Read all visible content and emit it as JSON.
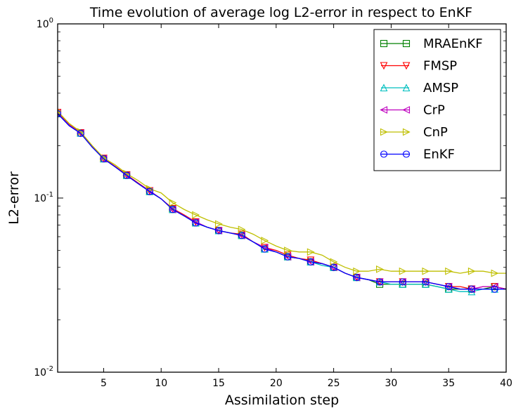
{
  "chart_data": {
    "type": "line",
    "title": "Time evolution of average log L2-error in respect to EnKF",
    "xlabel": "Assimilation step",
    "ylabel": "L2-error",
    "xlim": [
      1,
      40
    ],
    "ylim": [
      0.01,
      1
    ],
    "yscale": "log",
    "xticks": [
      5,
      10,
      15,
      20,
      25,
      30,
      35,
      40
    ],
    "xtick_labels": [
      "5",
      "10",
      "15",
      "20",
      "25",
      "30",
      "35",
      "40"
    ],
    "yticks": [
      {
        "value": 0.01,
        "base": "10",
        "exp": "-2"
      },
      {
        "value": 0.1,
        "base": "10",
        "exp": "-1"
      },
      {
        "value": 1,
        "base": "10",
        "exp": "0"
      }
    ],
    "legend_position": "top-right",
    "grid": false,
    "x": [
      1,
      2,
      3,
      4,
      5,
      6,
      7,
      8,
      9,
      10,
      11,
      12,
      13,
      14,
      15,
      16,
      17,
      18,
      19,
      20,
      21,
      22,
      23,
      24,
      25,
      26,
      27,
      28,
      29,
      30,
      31,
      32,
      33,
      34,
      35,
      36,
      37,
      38,
      39,
      40
    ],
    "series": [
      {
        "name": "MRAEnKF",
        "color": "#008000",
        "marker": "square",
        "values": [
          0.305,
          0.262,
          0.236,
          0.197,
          0.168,
          0.151,
          0.135,
          0.121,
          0.109,
          0.099,
          0.086,
          0.079,
          0.072,
          0.068,
          0.065,
          0.063,
          0.061,
          0.056,
          0.051,
          0.049,
          0.046,
          0.045,
          0.043,
          0.042,
          0.04,
          0.037,
          0.035,
          0.034,
          0.032,
          0.032,
          0.032,
          0.032,
          0.032,
          0.031,
          0.03,
          0.03,
          0.03,
          0.03,
          0.031,
          0.03
        ]
      },
      {
        "name": "FMSP",
        "color": "#ff0000",
        "marker": "triangle-down",
        "values": [
          0.31,
          0.264,
          0.237,
          0.198,
          0.169,
          0.152,
          0.136,
          0.122,
          0.11,
          0.099,
          0.087,
          0.08,
          0.073,
          0.068,
          0.065,
          0.063,
          0.062,
          0.056,
          0.052,
          0.05,
          0.047,
          0.045,
          0.044,
          0.042,
          0.04,
          0.037,
          0.035,
          0.034,
          0.033,
          0.033,
          0.033,
          0.033,
          0.033,
          0.032,
          0.031,
          0.031,
          0.03,
          0.031,
          0.031,
          0.03
        ]
      },
      {
        "name": "AMSP",
        "color": "#00bfbf",
        "marker": "triangle-up",
        "values": [
          0.307,
          0.262,
          0.236,
          0.197,
          0.168,
          0.151,
          0.135,
          0.121,
          0.109,
          0.099,
          0.086,
          0.079,
          0.072,
          0.068,
          0.065,
          0.063,
          0.061,
          0.056,
          0.051,
          0.049,
          0.046,
          0.045,
          0.043,
          0.041,
          0.04,
          0.037,
          0.035,
          0.034,
          0.033,
          0.032,
          0.032,
          0.032,
          0.032,
          0.031,
          0.03,
          0.029,
          0.029,
          0.03,
          0.03,
          0.03
        ]
      },
      {
        "name": "CrP",
        "color": "#bf00bf",
        "marker": "triangle-left",
        "values": [
          0.306,
          0.262,
          0.236,
          0.197,
          0.168,
          0.151,
          0.135,
          0.121,
          0.11,
          0.099,
          0.086,
          0.079,
          0.073,
          0.068,
          0.065,
          0.063,
          0.061,
          0.056,
          0.052,
          0.049,
          0.046,
          0.045,
          0.043,
          0.042,
          0.04,
          0.037,
          0.035,
          0.034,
          0.033,
          0.033,
          0.033,
          0.033,
          0.033,
          0.032,
          0.031,
          0.03,
          0.03,
          0.031,
          0.031,
          0.03
        ]
      },
      {
        "name": "CnP",
        "color": "#bfbf00",
        "marker": "triangle-right",
        "values": [
          0.315,
          0.268,
          0.24,
          0.2,
          0.17,
          0.155,
          0.138,
          0.126,
          0.113,
          0.107,
          0.094,
          0.086,
          0.08,
          0.075,
          0.071,
          0.068,
          0.066,
          0.062,
          0.057,
          0.053,
          0.05,
          0.049,
          0.049,
          0.047,
          0.043,
          0.04,
          0.038,
          0.038,
          0.039,
          0.038,
          0.038,
          0.038,
          0.038,
          0.038,
          0.038,
          0.037,
          0.038,
          0.038,
          0.037,
          0.037
        ]
      },
      {
        "name": "EnKF",
        "color": "#0000ff",
        "marker": "circle",
        "values": [
          0.305,
          0.26,
          0.235,
          0.196,
          0.168,
          0.151,
          0.135,
          0.121,
          0.109,
          0.099,
          0.086,
          0.079,
          0.072,
          0.068,
          0.065,
          0.063,
          0.061,
          0.056,
          0.051,
          0.049,
          0.046,
          0.045,
          0.043,
          0.042,
          0.04,
          0.037,
          0.035,
          0.034,
          0.033,
          0.033,
          0.033,
          0.033,
          0.033,
          0.032,
          0.031,
          0.03,
          0.03,
          0.03,
          0.03,
          0.03
        ]
      }
    ]
  }
}
